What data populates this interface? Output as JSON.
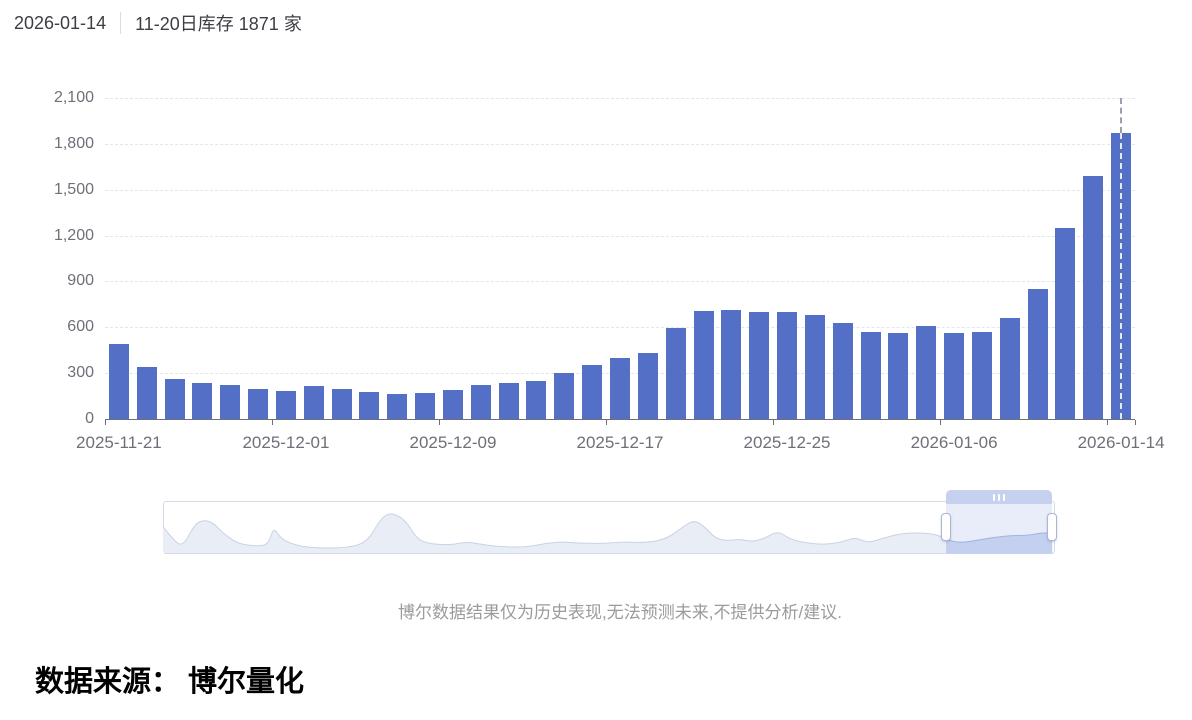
{
  "header": {
    "date": "2026-01-14",
    "title": "11-20日库存 1871 家"
  },
  "chart_data": {
    "type": "bar",
    "ylim": [
      0,
      2100
    ],
    "y_tick_step": 300,
    "y_tick_labels": [
      "0",
      "300",
      "600",
      "900",
      "1,200",
      "1,500",
      "1,800",
      "2,100"
    ],
    "x_tick_indices": [
      0,
      6,
      12,
      18,
      24,
      30,
      36
    ],
    "x_tick_labels": [
      "2025-11-21",
      "2025-12-01",
      "2025-12-09",
      "2025-12-17",
      "2025-12-25",
      "2026-01-06",
      "2026-01-14"
    ],
    "values": [
      490,
      337,
      262,
      237,
      224,
      196,
      183,
      214,
      195,
      176,
      161,
      171,
      190,
      221,
      235,
      248,
      299,
      352,
      397,
      429,
      595,
      707,
      711,
      700,
      702,
      678,
      629,
      572,
      560,
      606,
      564,
      566,
      661,
      848,
      1249,
      1588,
      1871
    ],
    "bar_color": "#5470C6",
    "grid": "horizontal-dashed",
    "legend": "none",
    "marker_line_index": 36
  },
  "data_zoom": {
    "window_start": 0.878,
    "window_end": 0.997,
    "grip_dots": 3,
    "mini_series": [
      [
        0.0,
        0.55
      ],
      [
        0.01,
        0.3
      ],
      [
        0.022,
        0.1
      ],
      [
        0.036,
        0.62
      ],
      [
        0.047,
        0.7
      ],
      [
        0.057,
        0.62
      ],
      [
        0.068,
        0.4
      ],
      [
        0.084,
        0.18
      ],
      [
        0.103,
        0.13
      ],
      [
        0.118,
        0.15
      ],
      [
        0.124,
        0.55
      ],
      [
        0.132,
        0.28
      ],
      [
        0.151,
        0.13
      ],
      [
        0.176,
        0.08
      ],
      [
        0.212,
        0.1
      ],
      [
        0.23,
        0.25
      ],
      [
        0.244,
        0.72
      ],
      [
        0.254,
        0.85
      ],
      [
        0.265,
        0.78
      ],
      [
        0.275,
        0.6
      ],
      [
        0.284,
        0.3
      ],
      [
        0.297,
        0.18
      ],
      [
        0.322,
        0.15
      ],
      [
        0.339,
        0.22
      ],
      [
        0.353,
        0.18
      ],
      [
        0.374,
        0.12
      ],
      [
        0.404,
        0.1
      ],
      [
        0.428,
        0.18
      ],
      [
        0.445,
        0.22
      ],
      [
        0.462,
        0.2
      ],
      [
        0.49,
        0.18
      ],
      [
        0.518,
        0.22
      ],
      [
        0.544,
        0.2
      ],
      [
        0.566,
        0.3
      ],
      [
        0.583,
        0.55
      ],
      [
        0.596,
        0.7
      ],
      [
        0.609,
        0.52
      ],
      [
        0.619,
        0.3
      ],
      [
        0.633,
        0.24
      ],
      [
        0.647,
        0.28
      ],
      [
        0.66,
        0.22
      ],
      [
        0.675,
        0.3
      ],
      [
        0.689,
        0.46
      ],
      [
        0.703,
        0.28
      ],
      [
        0.72,
        0.2
      ],
      [
        0.742,
        0.16
      ],
      [
        0.762,
        0.22
      ],
      [
        0.776,
        0.32
      ],
      [
        0.79,
        0.2
      ],
      [
        0.804,
        0.28
      ],
      [
        0.826,
        0.4
      ],
      [
        0.849,
        0.42
      ],
      [
        0.868,
        0.38
      ],
      [
        0.882,
        0.24
      ],
      [
        0.896,
        0.2
      ],
      [
        0.914,
        0.26
      ],
      [
        0.933,
        0.32
      ],
      [
        0.952,
        0.36
      ],
      [
        0.97,
        0.36
      ],
      [
        0.985,
        0.42
      ],
      [
        0.997,
        0.4
      ]
    ]
  },
  "footer": {
    "disclaimer": "博尔数据结果仅为历史表现,无法预测未来,不提供分析/建议.",
    "source": "数据来源： 博尔量化"
  },
  "ui_colors": {
    "bar": "#5470C6",
    "axis_label": "#6E7079",
    "grid_line": "#E0E6F1",
    "selection_fill": "#a7b7e7",
    "grip_bar": "#c6d0ef"
  }
}
